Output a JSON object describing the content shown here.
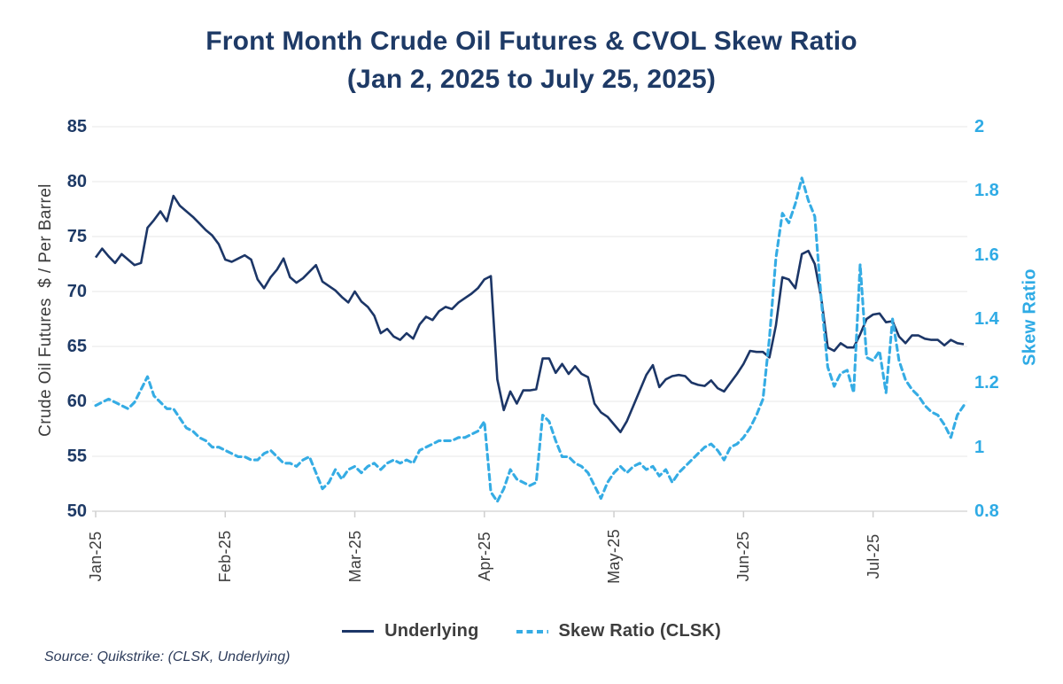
{
  "title": {
    "line1": "Front Month Crude Oil Futures & CVOL Skew Ratio",
    "line2": "(Jan 2, 2025 to July 25, 2025)"
  },
  "source": {
    "text": "Source: Quikstrike: (CLSK, Underlying)"
  },
  "legend": {
    "items": [
      {
        "label": "Underlying",
        "style": "solid",
        "color": "#1c3667"
      },
      {
        "label": "Skew Ratio (CLSK)",
        "style": "dashed",
        "color": "#35ace4"
      }
    ]
  },
  "left_axis": {
    "title": "Crude Oil Futures  $ / Per Barrel",
    "tick_labels": [
      "85",
      "80",
      "75",
      "70",
      "65",
      "60",
      "55",
      "50"
    ],
    "tick_values": [
      85,
      80,
      75,
      70,
      65,
      60,
      55,
      50
    ],
    "color": "#1e3a66"
  },
  "right_axis": {
    "title": "Skew Ratio",
    "tick_labels": [
      "2",
      "1.8",
      "1.6",
      "1.4",
      "1.2",
      "1",
      "0.8"
    ],
    "tick_values": [
      2,
      1.8,
      1.6,
      1.4,
      1.2,
      1,
      0.8
    ],
    "color": "#2fabe5"
  },
  "x_axis": {
    "labels": [
      "Jan-25",
      "Feb-25",
      "Mar-25",
      "Apr-25",
      "May-25",
      "Jun-25",
      "Jul-25"
    ]
  },
  "chart_data": {
    "type": "line",
    "title": "Front Month Crude Oil Futures & CVOL Skew Ratio (Jan 2, 2025 to July 25, 2025)",
    "x_categories": [
      "Jan-25",
      "Feb-25",
      "Mar-25",
      "Apr-25",
      "May-25",
      "Jun-25",
      "Jul-25"
    ],
    "points_per_month": 20,
    "left_axis_label": "Crude Oil Futures $ / Per Barrel",
    "right_axis_label": "Skew Ratio",
    "left_axis_range": [
      50,
      85
    ],
    "right_axis_range": [
      0.8,
      2.0
    ],
    "grid": "horizontal",
    "legend_position": "bottom",
    "series": [
      {
        "name": "Underlying",
        "axis": "left",
        "color": "#1c3667",
        "dash": false,
        "values": [
          73.1,
          73.9,
          73.2,
          72.6,
          73.4,
          72.9,
          72.4,
          72.6,
          75.8,
          76.5,
          77.3,
          76.4,
          78.7,
          77.8,
          77.3,
          76.8,
          76.2,
          75.6,
          75.1,
          74.3,
          72.9,
          72.7,
          73.0,
          73.3,
          72.9,
          71.1,
          70.3,
          71.3,
          72.0,
          73.0,
          71.3,
          70.8,
          71.2,
          71.8,
          72.4,
          70.9,
          70.5,
          70.1,
          69.5,
          69.0,
          70.0,
          69.1,
          68.6,
          67.8,
          66.2,
          66.6,
          65.9,
          65.6,
          66.2,
          65.7,
          67.0,
          67.7,
          67.4,
          68.2,
          68.6,
          68.4,
          69.0,
          69.4,
          69.8,
          70.3,
          71.1,
          71.4,
          62.0,
          59.2,
          60.9,
          59.8,
          61.0,
          61.0,
          61.1,
          63.9,
          63.9,
          62.6,
          63.4,
          62.5,
          63.2,
          62.5,
          62.2,
          59.8,
          59.0,
          58.6,
          57.9,
          57.2,
          58.2,
          59.6,
          61.0,
          62.4,
          63.3,
          61.3,
          62.0,
          62.3,
          62.4,
          62.3,
          61.7,
          61.5,
          61.4,
          61.9,
          61.2,
          60.9,
          61.7,
          62.5,
          63.4,
          64.6,
          64.5,
          64.5,
          64.0,
          66.9,
          71.3,
          71.1,
          70.3,
          73.4,
          73.7,
          72.5,
          69.4,
          64.9,
          64.6,
          65.3,
          64.9,
          64.9,
          66.1,
          67.5,
          67.9,
          68.0,
          67.2,
          67.3,
          65.9,
          65.3,
          66.0,
          66.0,
          65.7,
          65.6,
          65.6,
          65.1,
          65.6,
          65.3,
          65.2
        ]
      },
      {
        "name": "Skew Ratio (CLSK)",
        "axis": "right",
        "color": "#35ace4",
        "dash": true,
        "values": [
          1.13,
          1.14,
          1.15,
          1.14,
          1.13,
          1.12,
          1.14,
          1.18,
          1.22,
          1.16,
          1.14,
          1.12,
          1.12,
          1.09,
          1.06,
          1.05,
          1.03,
          1.02,
          1.0,
          1.0,
          0.99,
          0.98,
          0.97,
          0.97,
          0.96,
          0.96,
          0.98,
          0.99,
          0.97,
          0.95,
          0.95,
          0.94,
          0.96,
          0.97,
          0.92,
          0.87,
          0.89,
          0.93,
          0.9,
          0.93,
          0.94,
          0.92,
          0.94,
          0.95,
          0.93,
          0.95,
          0.96,
          0.95,
          0.96,
          0.95,
          0.99,
          1.0,
          1.01,
          1.02,
          1.02,
          1.02,
          1.03,
          1.03,
          1.04,
          1.05,
          1.08,
          0.86,
          0.83,
          0.87,
          0.93,
          0.9,
          0.89,
          0.88,
          0.89,
          1.1,
          1.08,
          1.02,
          0.97,
          0.97,
          0.95,
          0.94,
          0.92,
          0.88,
          0.84,
          0.89,
          0.92,
          0.94,
          0.92,
          0.94,
          0.95,
          0.93,
          0.94,
          0.91,
          0.93,
          0.89,
          0.92,
          0.94,
          0.96,
          0.98,
          1.0,
          1.01,
          0.99,
          0.96,
          1.0,
          1.01,
          1.03,
          1.06,
          1.1,
          1.15,
          1.34,
          1.59,
          1.73,
          1.7,
          1.76,
          1.84,
          1.77,
          1.72,
          1.46,
          1.25,
          1.19,
          1.23,
          1.24,
          1.17,
          1.57,
          1.28,
          1.27,
          1.3,
          1.17,
          1.4,
          1.27,
          1.21,
          1.18,
          1.16,
          1.13,
          1.11,
          1.1,
          1.07,
          1.03,
          1.1,
          1.13
        ]
      }
    ]
  }
}
